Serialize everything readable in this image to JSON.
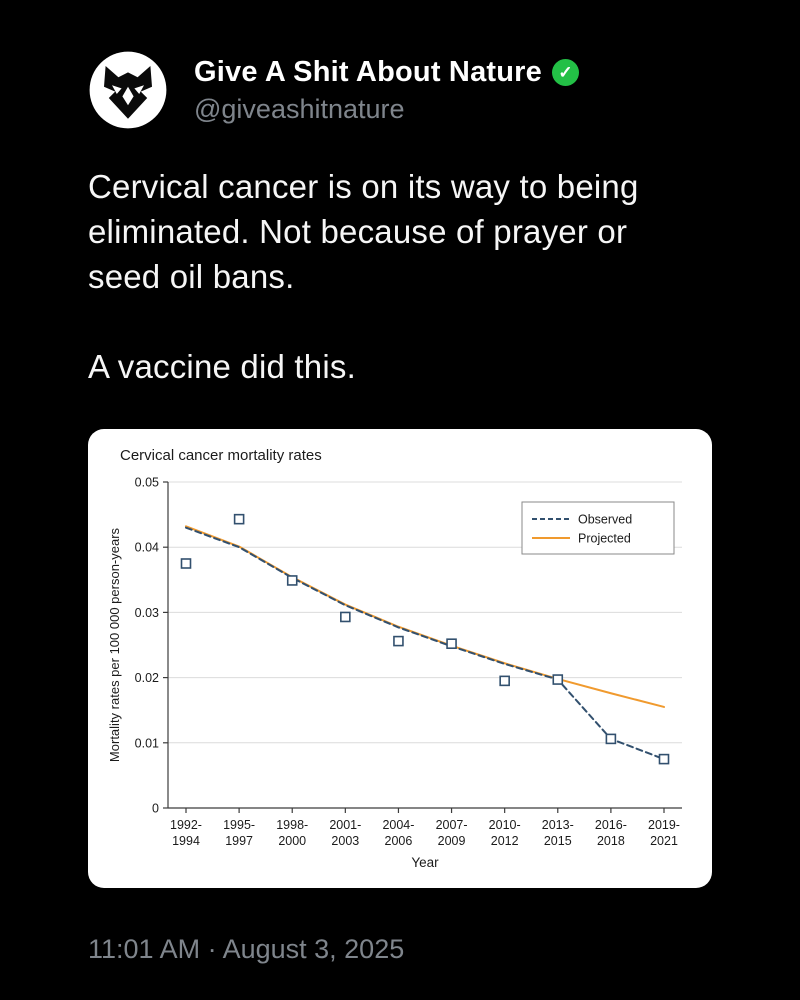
{
  "header": {
    "display_name": "Give A Shit About Nature",
    "handle": "@giveashitnature",
    "verified": true,
    "verified_color": "#23c046"
  },
  "tweet": {
    "paragraph1": "Cervical cancer is on its way to being\neliminated. Not because of prayer or\nseed oil bans.",
    "paragraph2": "A vaccine did this.",
    "timestamp": "11:01 AM · August 3, 2025"
  },
  "chart_data": {
    "type": "line",
    "title": "Cervical cancer mortality rates",
    "xlabel": "Year",
    "ylabel": "Mortality rates per 100 000 person-years",
    "ylim": [
      0,
      0.05
    ],
    "yticks": [
      0,
      0.01,
      0.02,
      0.03,
      0.04,
      0.05
    ],
    "grid": true,
    "legend_position": "upper right",
    "categories": [
      "1992-1994",
      "1995-1997",
      "1998-2000",
      "2001-2003",
      "2004-2006",
      "2007-2009",
      "2010-2012",
      "2013-2015",
      "2016-2018",
      "2019-2021"
    ],
    "series": [
      {
        "name": "Observed",
        "color": "#32506e",
        "line_style": "dashed",
        "marker": "square",
        "line_values": [
          0.043,
          0.04,
          0.0353,
          0.0311,
          0.0277,
          0.0248,
          0.0221,
          0.0197,
          0.0106,
          0.0075
        ],
        "marker_values": [
          0.0375,
          0.0443,
          0.0349,
          0.0293,
          0.0256,
          0.0252,
          0.0195,
          0.0197,
          0.0106,
          0.0075
        ]
      },
      {
        "name": "Projected",
        "color": "#f09a2e",
        "line_style": "solid",
        "marker": "none",
        "line_values": [
          0.0432,
          0.0401,
          0.0354,
          0.0312,
          0.0278,
          0.0249,
          0.0222,
          0.0198,
          0.0176,
          0.0155
        ]
      }
    ]
  }
}
